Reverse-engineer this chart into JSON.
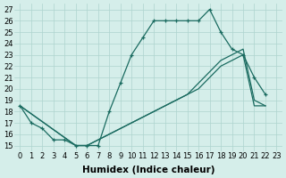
{
  "xlabel": "Humidex (Indice chaleur)",
  "xlim": [
    -0.5,
    23.5
  ],
  "ylim": [
    14.5,
    27.5
  ],
  "xticks": [
    0,
    1,
    2,
    3,
    4,
    5,
    6,
    7,
    8,
    9,
    10,
    11,
    12,
    13,
    14,
    15,
    16,
    17,
    18,
    19,
    20,
    21,
    22,
    23
  ],
  "yticks": [
    15,
    16,
    17,
    18,
    19,
    20,
    21,
    22,
    23,
    24,
    25,
    26,
    27
  ],
  "bg_color": "#d5eeea",
  "grid_color": "#aed4ce",
  "line_color": "#1a6b60",
  "line1_x": [
    0,
    1,
    2,
    3,
    4,
    5,
    6,
    7,
    8,
    9,
    10,
    11,
    12,
    13,
    14,
    15,
    16,
    17,
    18,
    19,
    20,
    21,
    22
  ],
  "line1_y": [
    18.5,
    17.0,
    16.5,
    15.5,
    15.5,
    15.0,
    15.0,
    15.0,
    18.0,
    20.5,
    23.0,
    24.5,
    26.0,
    26.0,
    26.0,
    26.0,
    26.0,
    27.0,
    25.0,
    23.5,
    23.0,
    21.0,
    19.5
  ],
  "line2_x": [
    0,
    5,
    6,
    7,
    8,
    9,
    10,
    11,
    12,
    13,
    14,
    15,
    16,
    17,
    18,
    19,
    20,
    21,
    22
  ],
  "line2_y": [
    18.5,
    15.0,
    15.0,
    15.5,
    16.0,
    16.5,
    17.0,
    17.5,
    18.0,
    18.5,
    19.0,
    19.5,
    20.5,
    21.5,
    22.5,
    23.0,
    23.5,
    19.0,
    18.5
  ],
  "line3_x": [
    0,
    5,
    6,
    7,
    8,
    9,
    10,
    11,
    12,
    13,
    14,
    15,
    16,
    17,
    18,
    19,
    20,
    21,
    22
  ],
  "line3_y": [
    18.5,
    15.0,
    15.0,
    15.5,
    16.0,
    16.5,
    17.0,
    17.5,
    18.0,
    18.5,
    19.0,
    19.5,
    20.0,
    21.0,
    22.0,
    22.5,
    23.0,
    18.5,
    18.5
  ],
  "tick_fontsize": 6,
  "label_fontsize": 7.5
}
